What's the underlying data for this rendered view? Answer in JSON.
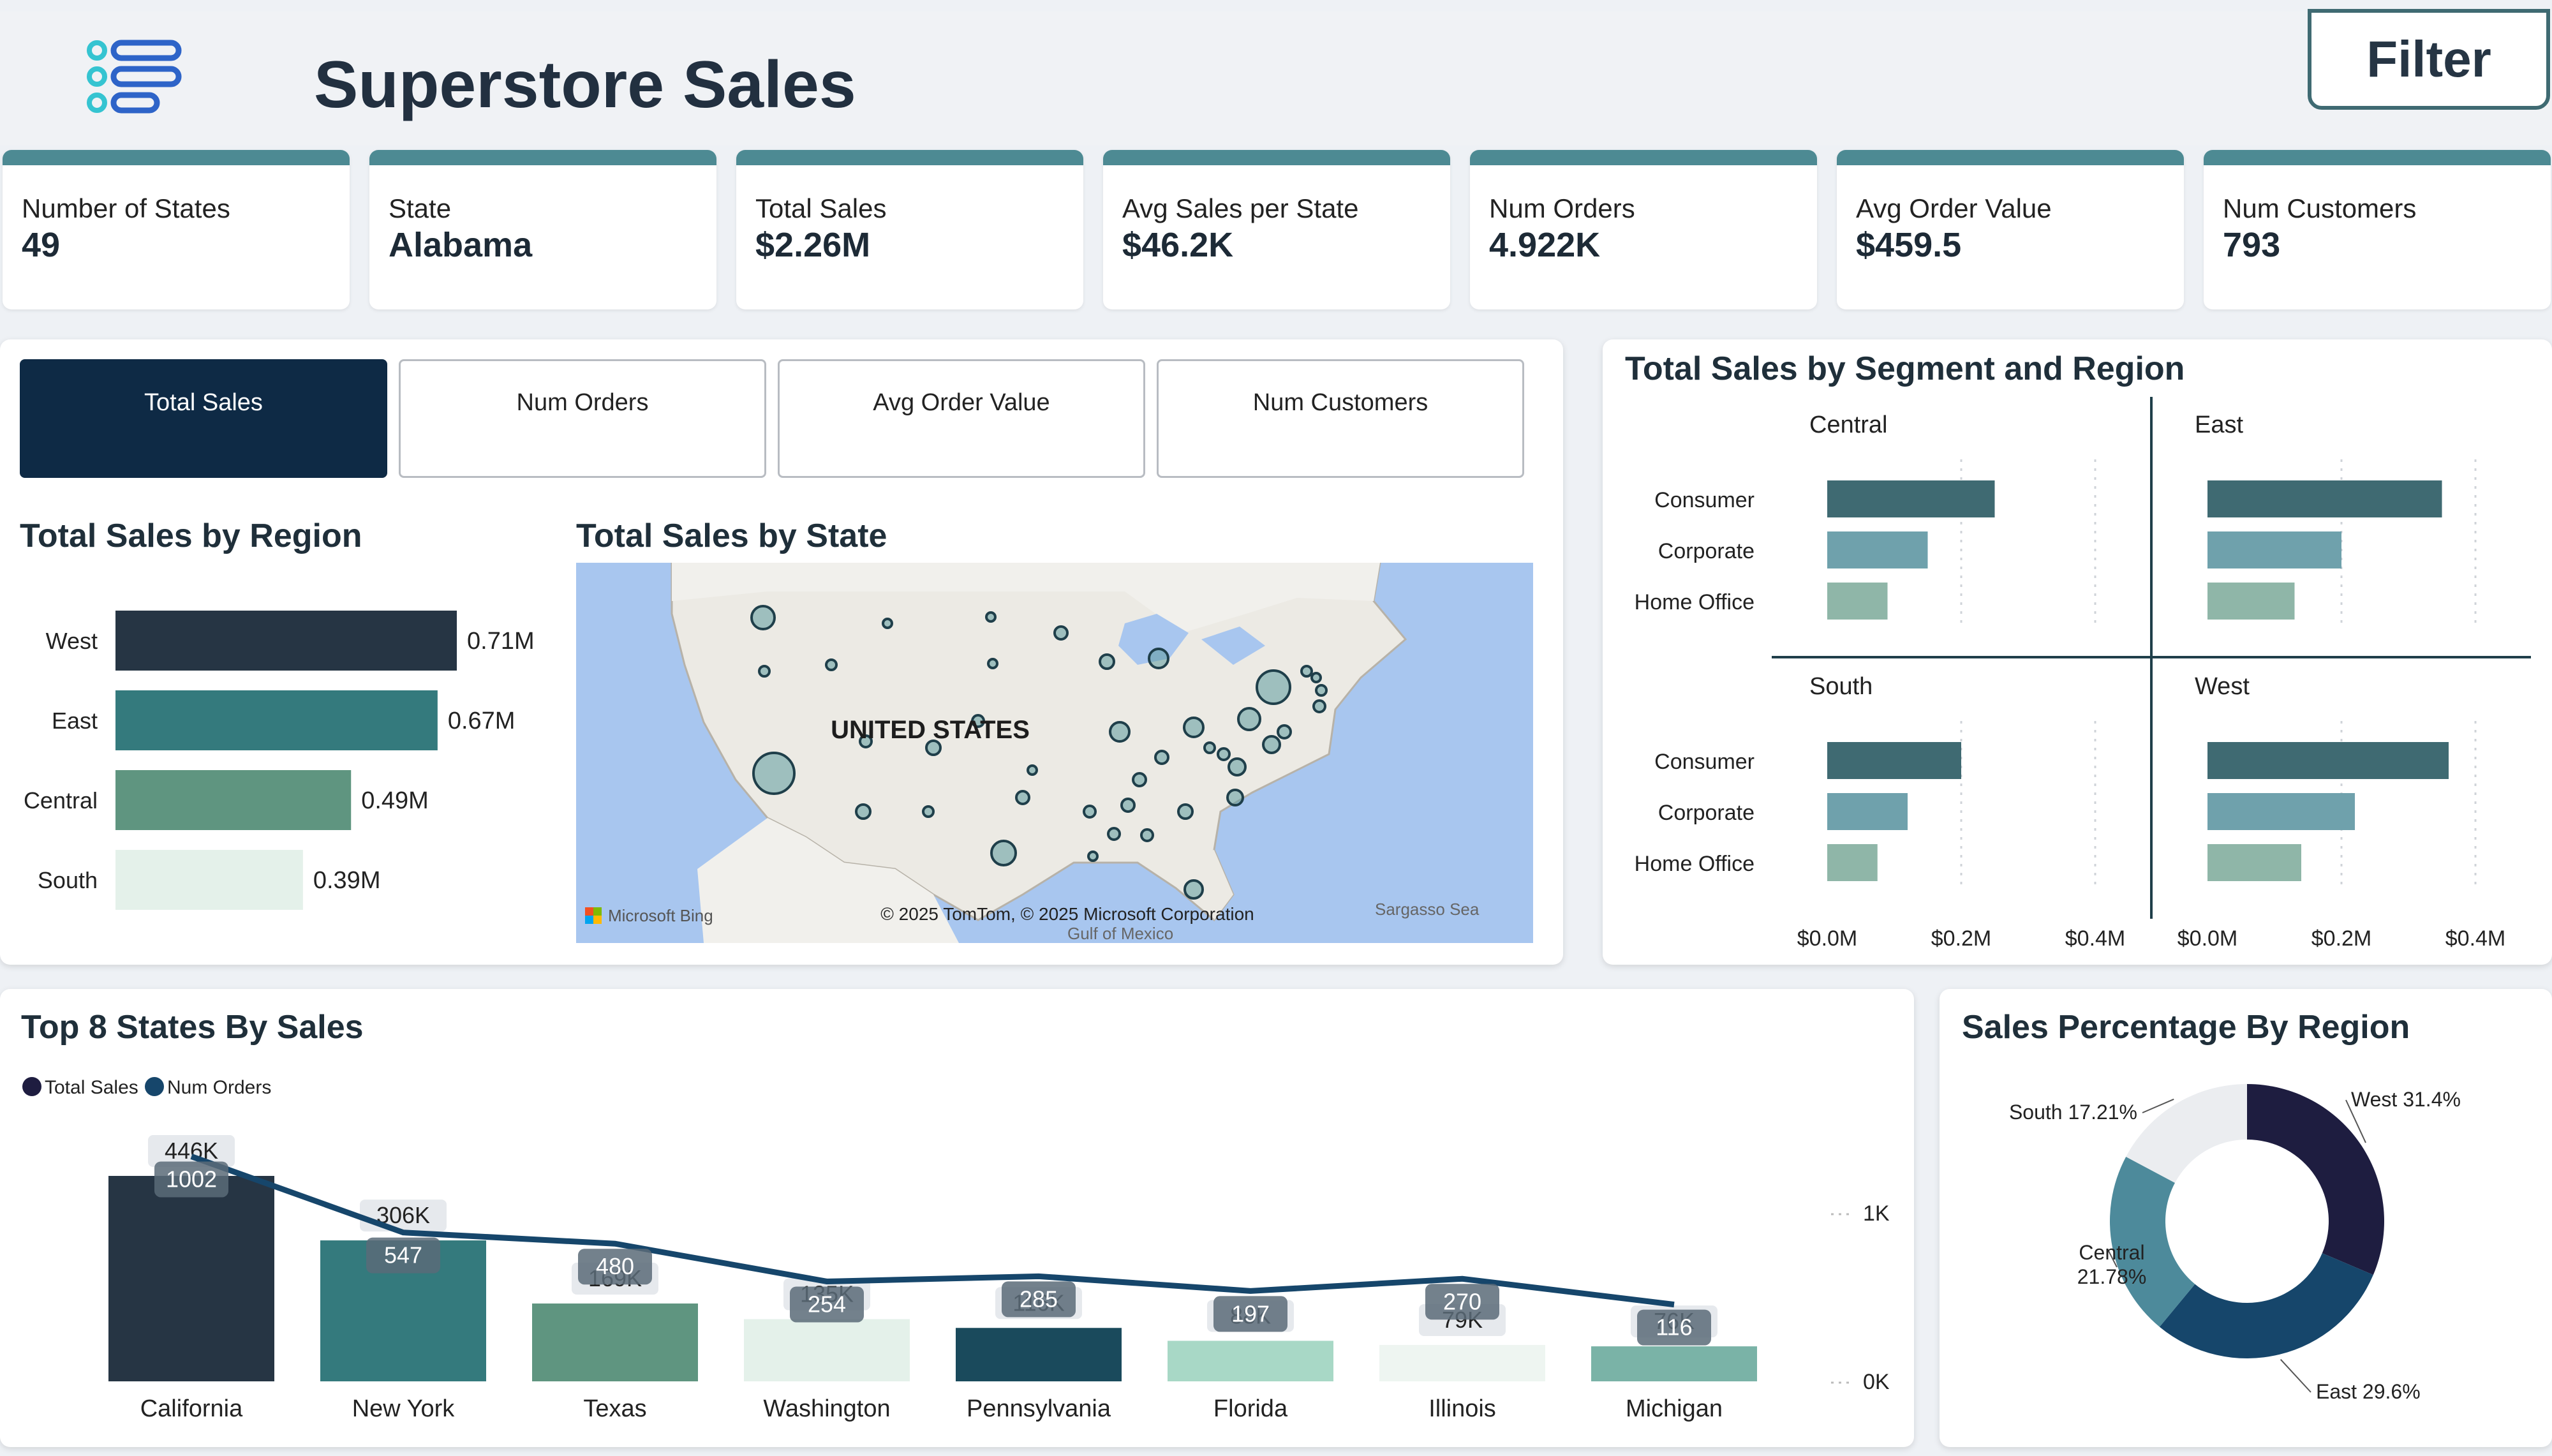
{
  "header": {
    "title": "Superstore Sales",
    "filter_label": "Filter",
    "logo_icon": "list-menu-icon"
  },
  "kpis": [
    {
      "label": "Number of States",
      "value": "49"
    },
    {
      "label": "State",
      "value": "Alabama"
    },
    {
      "label": "Total Sales",
      "value": "$2.26M"
    },
    {
      "label": "Avg Sales per State",
      "value": "$46.2K"
    },
    {
      "label": "Num Orders",
      "value": "4.922K"
    },
    {
      "label": "Avg Order Value",
      "value": "$459.5"
    },
    {
      "label": "Num Customers",
      "value": "793"
    }
  ],
  "tabs": [
    {
      "label": "Total Sales",
      "active": true
    },
    {
      "label": "Num Orders",
      "active": false
    },
    {
      "label": "Avg Order Value",
      "active": false
    },
    {
      "label": "Num Customers",
      "active": false
    }
  ],
  "map": {
    "title": "Total Sales by State",
    "country_label": "UNITED STATES",
    "attribution": "© 2025 TomTom, © 2025 Microsoft Corporation",
    "provider": "Microsoft Bing",
    "gulf_label": "Gulf of Mexico",
    "sea_label": "Sargasso Sea"
  },
  "colors": {
    "accent": "#4d8a93",
    "navy": "#0e2a45",
    "west": "#263544",
    "east": "#347a7d",
    "central": "#5f9580",
    "south": "#e4f1ea",
    "consumer": "#3f6a72",
    "corporate": "#6fa1ac",
    "home_office": "#8fb6a8"
  },
  "chart_data": [
    {
      "id": "region",
      "type": "bar",
      "orientation": "horizontal",
      "title": "Total Sales by Region",
      "categories": [
        "West",
        "East",
        "Central",
        "South"
      ],
      "values": [
        0.71,
        0.67,
        0.49,
        0.39
      ],
      "value_labels": [
        "0.71M",
        "0.67M",
        "0.49M",
        "0.39M"
      ]
    },
    {
      "id": "segment",
      "type": "bar",
      "orientation": "horizontal",
      "title": "Total Sales by Segment and Region",
      "segments": [
        "Consumer",
        "Corporate",
        "Home Office"
      ],
      "panels": [
        {
          "name": "Central",
          "values": [
            0.25,
            0.15,
            0.09
          ]
        },
        {
          "name": "East",
          "values": [
            0.35,
            0.2,
            0.13
          ]
        },
        {
          "name": "South",
          "values": [
            0.2,
            0.12,
            0.075
          ]
        },
        {
          "name": "West",
          "values": [
            0.36,
            0.22,
            0.14
          ]
        }
      ],
      "xlim": [
        0,
        0.4
      ],
      "x_ticks": [
        "$0.0M",
        "$0.2M",
        "$0.4M"
      ]
    },
    {
      "id": "top8",
      "type": "bar",
      "title": "Top 8 States By Sales",
      "legend": [
        "Total Sales",
        "Num Orders"
      ],
      "categories": [
        "California",
        "New York",
        "Texas",
        "Washington",
        "Pennsylvania",
        "Florida",
        "Illinois",
        "Michigan"
      ],
      "series": [
        {
          "name": "Total Sales",
          "values": [
            446,
            306,
            169,
            135,
            116,
            88,
            79,
            76
          ],
          "labels": [
            "446K",
            "306K",
            "169K",
            "135K",
            "116K",
            "88K",
            "79K",
            "76K"
          ]
        },
        {
          "name": "Num Orders",
          "values": [
            1002,
            547,
            480,
            254,
            285,
            197,
            270,
            116
          ],
          "labels": [
            "1002",
            "547",
            "480",
            "254",
            "285",
            "197",
            "270",
            "116"
          ]
        }
      ],
      "y2_ticks": [
        "1K",
        "0K"
      ]
    },
    {
      "id": "pie",
      "type": "pie",
      "title": "Sales Percentage By Region",
      "categories": [
        "West",
        "East",
        "Central",
        "South"
      ],
      "values": [
        31.4,
        29.6,
        21.78,
        17.21
      ],
      "labels": [
        "West 31.4%",
        "East 29.6%",
        "Central 21.78%",
        "South 17.21%"
      ],
      "colors": [
        "#1e1d40",
        "#16466b",
        "#4d8a9b",
        "#ebedf0"
      ]
    }
  ]
}
